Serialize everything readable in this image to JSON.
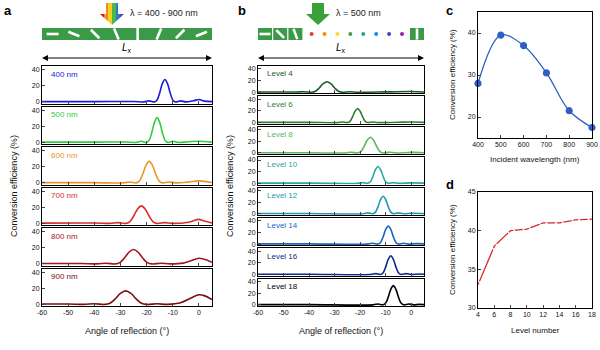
{
  "chart_data": [
    {
      "type": "line",
      "panel": "a",
      "header": "λ = 400 - 900 nm",
      "span_label": "L",
      "span_subscript": "x",
      "xlabel": "Angle of reflection (°)",
      "ylabel": "Conversion efficiency (%)",
      "xlim": [
        -60,
        5
      ],
      "xticks": [
        -60,
        -50,
        -40,
        -30,
        -20,
        -10,
        0
      ],
      "ylim": [
        -2,
        45
      ],
      "yticks": [
        0,
        20,
        40
      ],
      "line_style": "smooth",
      "series": [
        {
          "name": "400 nm",
          "color": "#1a1adb",
          "x": [
            -60,
            -40,
            -25,
            -21,
            -19,
            -17,
            -16,
            -15,
            -14,
            -13,
            -12,
            -11,
            -10,
            -9,
            -7,
            -5,
            -2,
            0,
            2,
            5
          ],
          "values": [
            0.3,
            0.3,
            0.5,
            0,
            1.3,
            0,
            2.5,
            11.3,
            22.7,
            28,
            22.7,
            11.3,
            2.5,
            0,
            1.3,
            0,
            1.5,
            3,
            1,
            0.3
          ]
        },
        {
          "name": "500 nm",
          "color": "#2ecc40",
          "x": [
            -60,
            -40,
            -28,
            -24,
            -22,
            -20,
            -19,
            -18,
            -17,
            -16,
            -15,
            -14,
            -13,
            -12,
            -10,
            -8,
            -4,
            0,
            5
          ],
          "values": [
            0.3,
            0.3,
            0.5,
            0,
            1.4,
            0,
            2.8,
            12.6,
            25.1,
            31,
            25.1,
            12.6,
            2.8,
            0,
            1.4,
            0,
            0.8,
            1.5,
            0.3
          ]
        },
        {
          "name": "600 nm",
          "color": "#e8962a",
          "x": [
            -60,
            -40,
            -29,
            -26.5,
            -24,
            -22.75,
            -21.5,
            -20.25,
            -19,
            -17.75,
            -16.5,
            -15.25,
            -14,
            -11.5,
            -9,
            -4,
            0,
            5
          ],
          "values": [
            0.3,
            0.4,
            0,
            1.2,
            0,
            2.4,
            10.9,
            21.9,
            27,
            21.9,
            10.9,
            2.4,
            0,
            1.2,
            0,
            1,
            2.5,
            0.5
          ]
        },
        {
          "name": "700 nm",
          "color": "#d62d2d",
          "x": [
            -60,
            -40,
            -34,
            -31,
            -28,
            -26.5,
            -25,
            -23.5,
            -22,
            -20.5,
            -19,
            -17.5,
            -16,
            -13,
            -10,
            -4,
            0,
            2,
            5
          ],
          "values": [
            0.4,
            0.5,
            0,
            1.0,
            0,
            2.0,
            8.9,
            17.8,
            22,
            17.8,
            8.9,
            2.0,
            0,
            1.0,
            0,
            1.5,
            5,
            3,
            0.5
          ]
        },
        {
          "name": "800 nm",
          "color": "#a31818",
          "x": [
            -60,
            -45,
            -39,
            -35.5,
            -32,
            -30.25,
            -28.5,
            -26.75,
            -25,
            -23.25,
            -21.5,
            -19.75,
            -18,
            -14.5,
            -11,
            -6,
            -3,
            0,
            3,
            5
          ],
          "values": [
            0.5,
            0.5,
            0,
            0.8,
            0,
            1.6,
            7.3,
            14.6,
            18,
            14.6,
            7.3,
            1.6,
            0,
            0.8,
            0,
            1,
            4,
            7,
            5,
            2
          ]
        },
        {
          "name": "900 nm",
          "color": "#7a1010",
          "x": [
            -60,
            -50,
            -44,
            -40,
            -36,
            -34,
            -32,
            -30,
            -28,
            -26,
            -24,
            -22,
            -20,
            -16,
            -12,
            -7,
            -3,
            0,
            2,
            5
          ],
          "values": [
            0.5,
            0.5,
            0,
            0.8,
            0,
            1.5,
            6.9,
            13.8,
            17,
            13.8,
            6.9,
            1.5,
            0,
            0.8,
            0,
            2,
            8,
            12,
            11,
            6
          ]
        }
      ]
    },
    {
      "type": "line",
      "panel": "b",
      "header": "λ = 500 nm",
      "span_label": "L",
      "span_subscript": "x",
      "xlabel": "Angle of reflection (°)",
      "ylabel": "Conversion efficiency (%)",
      "xlim": [
        -60,
        5
      ],
      "xticks": [
        -60,
        -50,
        -40,
        -30,
        -20,
        -10,
        0
      ],
      "ylim": [
        -2,
        45
      ],
      "yticks": [
        0,
        20,
        40
      ],
      "line_style": "smooth",
      "series": [
        {
          "name": "Level 4",
          "color": "#1b5e20",
          "x": [
            -60,
            -45,
            -42,
            -39,
            -37.5,
            -36,
            -34.5,
            -33,
            -31.5,
            -30,
            -28.5,
            -27,
            -24,
            -21,
            -10,
            0,
            5
          ],
          "values": [
            0.3,
            0.4,
            0.8,
            0,
            1.6,
            7.3,
            14.6,
            18,
            14.6,
            7.3,
            1.6,
            0,
            0.8,
            0,
            0.5,
            1.2,
            0.3
          ]
        },
        {
          "name": "Level 6",
          "color": "#2e7d32",
          "x": [
            -60,
            -40,
            -29,
            -27,
            -25,
            -24,
            -23,
            -22,
            -21,
            -20,
            -19,
            -18,
            -17,
            -15,
            -13,
            -5,
            0,
            5
          ],
          "values": [
            0.3,
            0.3,
            0,
            1.1,
            0,
            2.2,
            9.7,
            19.4,
            24,
            19.4,
            9.7,
            2.2,
            0,
            1.1,
            0,
            0.5,
            1,
            0.3
          ]
        },
        {
          "name": "Level 8",
          "color": "#5cb85c",
          "x": [
            -60,
            -40,
            -26,
            -23.5,
            -21,
            -19.75,
            -18.5,
            -17.25,
            -16,
            -14.75,
            -13.5,
            -12.25,
            -11,
            -8.5,
            -6,
            0,
            5
          ],
          "values": [
            0.3,
            0.3,
            0,
            1.2,
            0,
            2.4,
            10.9,
            21.9,
            27,
            21.9,
            10.9,
            2.4,
            0,
            1.2,
            0,
            1,
            0.3
          ]
        },
        {
          "name": "Level 10",
          "color": "#2aa8a0",
          "x": [
            -60,
            -40,
            -21,
            -19,
            -17,
            -16,
            -15,
            -14,
            -13,
            -12,
            -11,
            -10,
            -9,
            -7,
            -5,
            0,
            5
          ],
          "values": [
            0.3,
            0.3,
            0,
            1.3,
            0,
            2.6,
            11.7,
            23.5,
            29,
            23.5,
            11.7,
            2.6,
            0,
            1.3,
            0,
            0.8,
            0.3
          ]
        },
        {
          "name": "Level 12",
          "color": "#1e9ab0",
          "x": [
            -60,
            -40,
            -19,
            -17,
            -15,
            -14,
            -13,
            -12,
            -11,
            -10,
            -9,
            -8,
            -7,
            -5,
            -3,
            0,
            5
          ],
          "values": [
            0.3,
            0.3,
            0,
            1.4,
            0,
            2.7,
            12.2,
            24.3,
            30,
            24.3,
            12.2,
            2.7,
            0,
            1.4,
            0,
            0.8,
            0.3
          ]
        },
        {
          "name": "Level 14",
          "color": "#1565c0",
          "x": [
            -60,
            -40,
            -17,
            -15,
            -13,
            -12,
            -11,
            -10,
            -9,
            -8,
            -7,
            -6,
            -5,
            -3,
            -1,
            2,
            5
          ],
          "values": [
            0.3,
            0.3,
            0,
            1.4,
            0,
            2.8,
            12.6,
            25.1,
            31,
            25.1,
            12.6,
            2.8,
            0,
            1.4,
            0,
            0.8,
            0.3
          ]
        },
        {
          "name": "Level 16",
          "color": "#0d2a8a",
          "x": [
            -60,
            -40,
            -16,
            -14,
            -12,
            -11,
            -10,
            -9,
            -8,
            -7,
            -6,
            -5,
            -4,
            -2,
            0,
            3,
            5
          ],
          "values": [
            0.3,
            0.3,
            0,
            1.4,
            0,
            2.9,
            13.0,
            25.9,
            32,
            25.9,
            13.0,
            2.9,
            0,
            1.4,
            0,
            0.8,
            0.3
          ]
        },
        {
          "name": "Level 18",
          "color": "#000000",
          "x": [
            -60,
            -40,
            -15,
            -13,
            -11,
            -10,
            -9,
            -8,
            -7,
            -6,
            -5,
            -4,
            -3,
            -1,
            1,
            3,
            5
          ],
          "values": [
            0.3,
            0.3,
            0,
            1.5,
            0,
            3.0,
            13.4,
            26.7,
            33,
            26.7,
            13.4,
            3.0,
            0,
            1.5,
            0,
            0.8,
            0.3
          ]
        }
      ]
    },
    {
      "type": "line",
      "panel": "c",
      "xlabel": "Incident wavelength (nm)",
      "ylabel": "Conversion efficiency (%)",
      "x": [
        400,
        500,
        600,
        700,
        800,
        900
      ],
      "values": [
        28,
        39.5,
        37,
        30.5,
        21.5,
        17.5
      ],
      "color": "#2f5fc4",
      "marker": "circle",
      "line_style": "smooth",
      "xlim": [
        400,
        900
      ],
      "xticks": [
        400,
        500,
        600,
        700,
        800,
        900
      ],
      "ylim": [
        15,
        45
      ],
      "yticks": [
        20,
        30,
        40
      ]
    },
    {
      "type": "line",
      "panel": "d",
      "xlabel": "Level number",
      "ylabel": "Conversion efficiency (%)",
      "x": [
        4,
        6,
        8,
        10,
        12,
        14,
        16,
        18
      ],
      "values": [
        33,
        38,
        40,
        40.2,
        41,
        41,
        41.4,
        41.5
      ],
      "color": "#d62728",
      "marker": "diamond-open",
      "line_style": "solid",
      "xlim": [
        4,
        18
      ],
      "xticks": [
        4,
        6,
        8,
        10,
        12,
        14,
        16,
        18
      ],
      "ylim": [
        30,
        45
      ],
      "yticks": [
        30,
        35,
        40,
        45
      ]
    }
  ]
}
